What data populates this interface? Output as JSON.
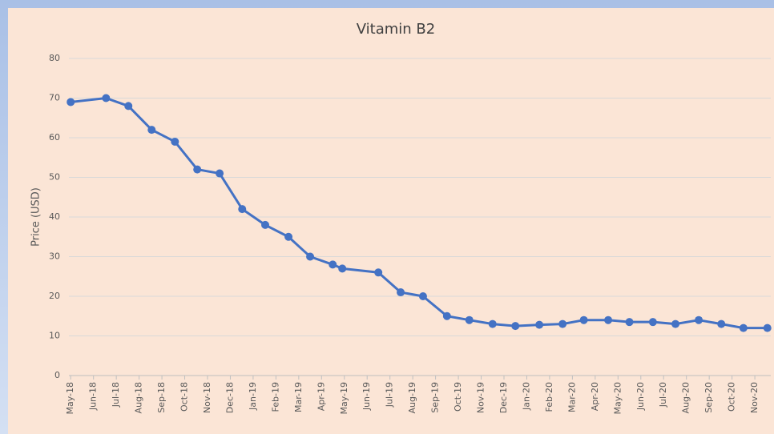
{
  "chart_data": {
    "type": "line",
    "title": "Vitamin B2",
    "y_label": "Price (USD)",
    "x": [
      0,
      1.55,
      2.53,
      3.55,
      4.57,
      5.55,
      6.53,
      7.52,
      8.53,
      9.55,
      10.5,
      11.49,
      11.91,
      13.49,
      14.47,
      15.45,
      16.5,
      17.48,
      18.5,
      19.5,
      20.55,
      21.57,
      22.5,
      23.57,
      24.5,
      25.53,
      26.52,
      27.54,
      28.53,
      29.5,
      30.55
    ],
    "series": [
      {
        "name": "Vitamin B2",
        "color": "#4472c4",
        "values": [
          69,
          70,
          68,
          62,
          59,
          52,
          51,
          42,
          38,
          35,
          30,
          28,
          27,
          26,
          21,
          20,
          15,
          14,
          13,
          12.5,
          12.8,
          13,
          14,
          14,
          13.5,
          13.5,
          13,
          14,
          13,
          12,
          12
        ]
      }
    ],
    "xlim": [
      -0.5,
      30.7
    ],
    "xticks": [
      {
        "value": 0,
        "label": "May-18"
      },
      {
        "value": 1,
        "label": "Jun-18"
      },
      {
        "value": 2,
        "label": "Jul-18"
      },
      {
        "value": 3,
        "label": "Aug-18"
      },
      {
        "value": 4,
        "label": "Sep-18"
      },
      {
        "value": 5,
        "label": "Oct-18"
      },
      {
        "value": 6,
        "label": "Nov-18"
      },
      {
        "value": 7,
        "label": "Dec-18"
      },
      {
        "value": 8,
        "label": "Jan-19"
      },
      {
        "value": 9,
        "label": "Feb-19"
      },
      {
        "value": 10,
        "label": "Mar-19"
      },
      {
        "value": 11,
        "label": "Apr-19"
      },
      {
        "value": 12,
        "label": "May-19"
      },
      {
        "value": 13,
        "label": "Jun-19"
      },
      {
        "value": 14,
        "label": "Jul-19"
      },
      {
        "value": 15,
        "label": "Aug-19"
      },
      {
        "value": 16,
        "label": "Sep-19"
      },
      {
        "value": 17,
        "label": "Oct-19"
      },
      {
        "value": 18,
        "label": "Nov-19"
      },
      {
        "value": 19,
        "label": "Dec-19"
      },
      {
        "value": 20,
        "label": "Jan-20"
      },
      {
        "value": 21,
        "label": "Feb-20"
      },
      {
        "value": 22,
        "label": "Mar-20"
      },
      {
        "value": 23,
        "label": "Apr-20"
      },
      {
        "value": 24,
        "label": "May-20"
      },
      {
        "value": 25,
        "label": "Jun-20"
      },
      {
        "value": 26,
        "label": "Jul-20"
      },
      {
        "value": 27,
        "label": "Aug-20"
      },
      {
        "value": 28,
        "label": "Sep-20"
      },
      {
        "value": 29,
        "label": "Oct-20"
      },
      {
        "value": 30,
        "label": "Nov-20"
      }
    ],
    "ylim": [
      0,
      80
    ],
    "yticks": [
      0,
      10,
      20,
      30,
      40,
      50,
      60,
      70,
      80
    ],
    "grid": true
  }
}
